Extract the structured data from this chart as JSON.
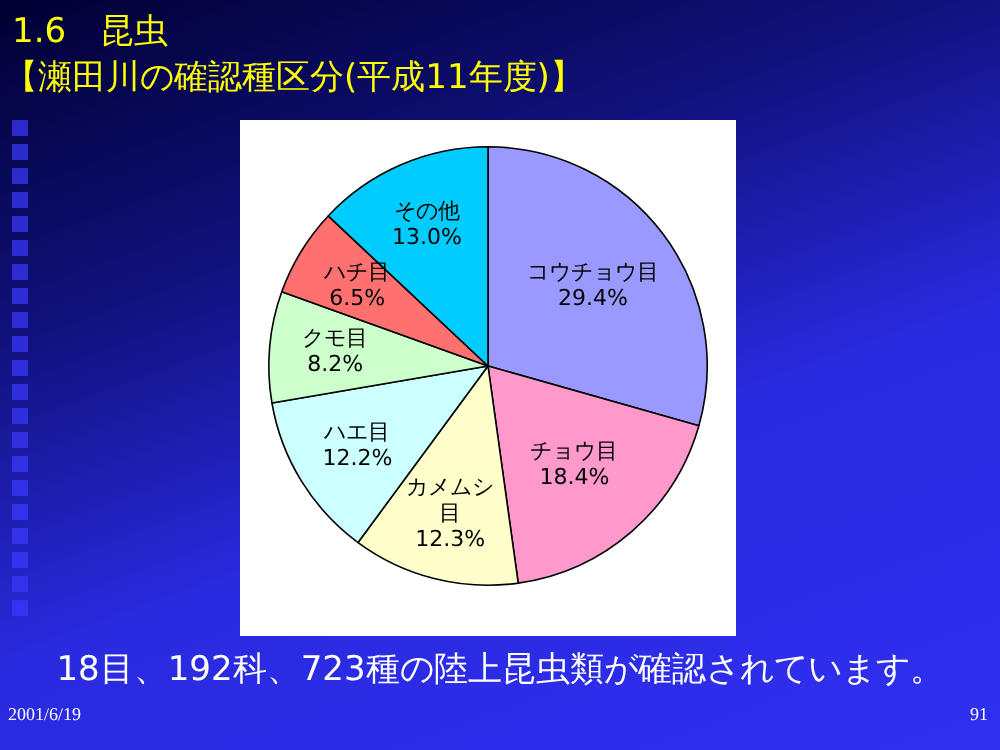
{
  "chart_data": {
    "type": "pie",
    "title": "1.6　昆虫",
    "subtitle": "【瀬田川の確認種区分(平成11年度)】",
    "categories": [
      "コウチョウ目",
      "チョウ目",
      "カメムシ目",
      "ハエ目",
      "クモ目",
      "ハチ目",
      "その他"
    ],
    "values": [
      29.4,
      18.4,
      12.3,
      12.2,
      8.2,
      6.5,
      13.0
    ],
    "colors": [
      "#9999ff",
      "#ff99cc",
      "#ffffcc",
      "#ccffff",
      "#ccffcc",
      "#ff7070",
      "#00ccff"
    ],
    "value_labels": [
      "29.4%",
      "18.4%",
      "12.3%",
      "12.2%",
      "8.2%",
      "6.5%",
      "13.0%"
    ],
    "legend": false,
    "annotations": [
      "18目、192科、723種の陸上昆虫類が確認されています。",
      "2001/6/19",
      "91"
    ]
  }
}
